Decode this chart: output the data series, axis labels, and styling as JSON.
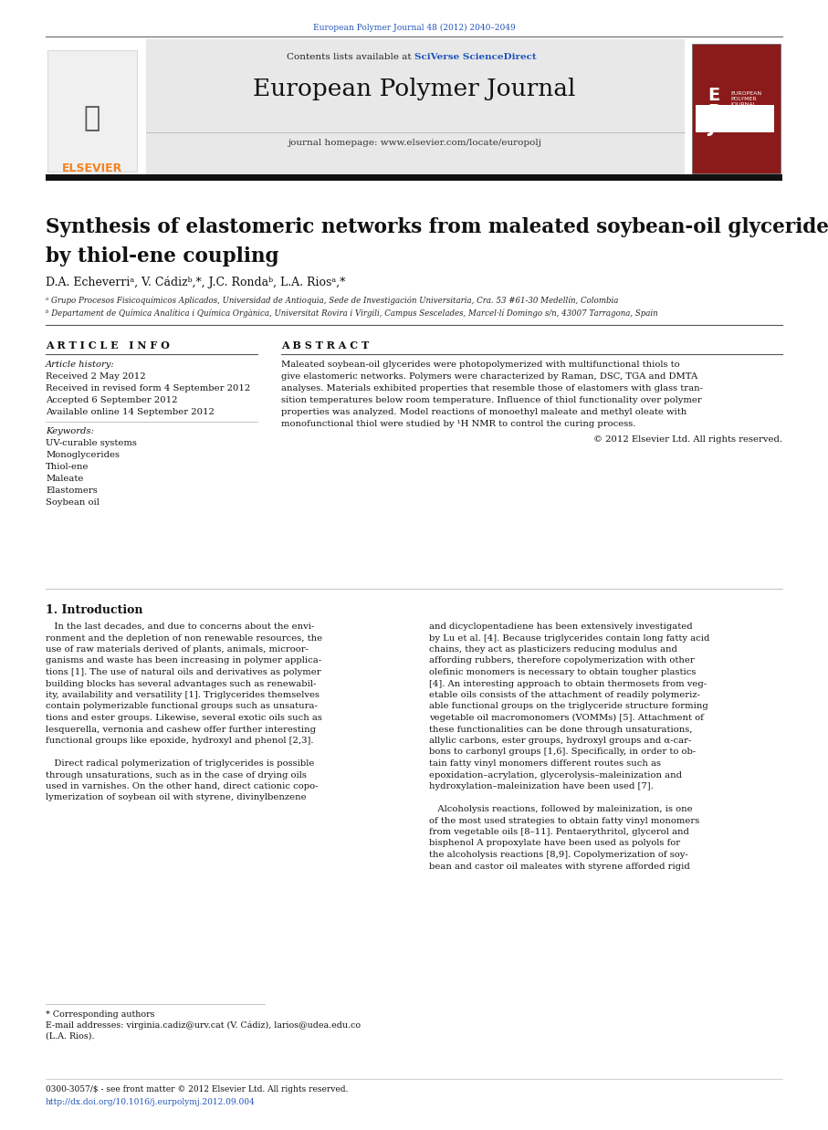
{
  "page_width": 9.07,
  "page_height": 12.38,
  "bg_color": "#ffffff",
  "header_journal_ref": "European Polymer Journal 48 (2012) 2040–2049",
  "journal_title": "European Polymer Journal",
  "journal_homepage": "journal homepage: www.elsevier.com/locate/europolj",
  "contents_text": "Contents lists available at ",
  "sciverse_text": "SciVerse ScienceDirect",
  "paper_title_line1": "Synthesis of elastomeric networks from maleated soybean-oil glycerides",
  "paper_title_line2": "by thiol-ene coupling",
  "authors": "D.A. Echeverriᵃ, V. Cádizᵇ,*, J.C. Rondaᵇ, L.A. Riosᵃ,*",
  "affil_a": "ᵃ Grupo Procesos Fisicoquímicos Aplicados, Universidad de Antioquia, Sede de Investigación Universitaria, Cra. 53 #61-30 Medellín, Colombia",
  "affil_b": "ᵇ Departament de Química Analítica i Química Orgànica, Universitat Rovira i Virgili, Campus Sescelades, Marcel·lí Domingo s/n, 43007 Tarragona, Spain",
  "article_info_header": "A R T I C L E   I N F O",
  "abstract_header": "A B S T R A C T",
  "article_history_label": "Article history:",
  "received": "Received 2 May 2012",
  "received_revised": "Received in revised form 4 September 2012",
  "accepted": "Accepted 6 September 2012",
  "available": "Available online 14 September 2012",
  "keywords_label": "Keywords:",
  "keywords": [
    "UV-curable systems",
    "Monoglycerides",
    "Thiol-ene",
    "Maleate",
    "Elastomers",
    "Soybean oil"
  ],
  "copyright": "© 2012 Elsevier Ltd. All rights reserved.",
  "intro_header": "1. Introduction",
  "footnote_star": "* Corresponding authors",
  "footnote_email": "E-mail addresses: virginia.cadiz@urv.cat (V. Cádiz), larios@udea.edu.co",
  "footnote_email2": "(L.A. Rios).",
  "copyright_footer": "0300-3057/$ - see front matter © 2012 Elsevier Ltd. All rights reserved.",
  "doi_footer": "http://dx.doi.org/10.1016/j.eurpolymj.2012.09.004",
  "header_bg": "#e8e8e8",
  "dark_bar_color": "#111111",
  "elsevier_orange": "#f5821f",
  "elsevier_red": "#8b1a1a",
  "link_blue": "#2255bb",
  "text_dark": "#111111",
  "abstract_lines": [
    "Maleated soybean-oil glycerides were photopolymerized with multifunctional thiols to",
    "give elastomeric networks. Polymers were characterized by Raman, DSC, TGA and DMTA",
    "analyses. Materials exhibited properties that resemble those of elastomers with glass tran-",
    "sition temperatures below room temperature. Influence of thiol functionality over polymer",
    "properties was analyzed. Model reactions of monoethyl maleate and methyl oleate with",
    "monofunctional thiol were studied by ¹H NMR to control the curing process."
  ],
  "intro_col1_lines": [
    "   In the last decades, and due to concerns about the envi-",
    "ronment and the depletion of non renewable resources, the",
    "use of raw materials derived of plants, animals, microor-",
    "ganisms and waste has been increasing in polymer applica-",
    "tions [1]. The use of natural oils and derivatives as polymer",
    "building blocks has several advantages such as renewabil-",
    "ity, availability and versatility [1]. Triglycerides themselves",
    "contain polymerizable functional groups such as unsatura-",
    "tions and ester groups. Likewise, several exotic oils such as",
    "lesquerella, vernonia and cashew offer further interesting",
    "functional groups like epoxide, hydroxyl and phenol [2,3].",
    "",
    "   Direct radical polymerization of triglycerides is possible",
    "through unsaturations, such as in the case of drying oils",
    "used in varnishes. On the other hand, direct cationic copo-",
    "lymerization of soybean oil with styrene, divinylbenzene"
  ],
  "intro_col2_lines": [
    "and dicyclopentadiene has been extensively investigated",
    "by Lu et al. [4]. Because triglycerides contain long fatty acid",
    "chains, they act as plasticizers reducing modulus and",
    "affording rubbers, therefore copolymerization with other",
    "olefinic monomers is necessary to obtain tougher plastics",
    "[4]. An interesting approach to obtain thermosets from veg-",
    "etable oils consists of the attachment of readily polymeriz-",
    "able functional groups on the triglyceride structure forming",
    "vegetable oil macromonomers (VOMMs) [5]. Attachment of",
    "these functionalities can be done through unsaturations,",
    "allylic carbons, ester groups, hydroxyl groups and α-car-",
    "bons to carbonyl groups [1,6]. Specifically, in order to ob-",
    "tain fatty vinyl monomers different routes such as",
    "epoxidation–acrylation, glycerolysis–maleinization and",
    "hydroxylation–maleinization have been used [7].",
    "",
    "   Alcoholysis reactions, followed by maleinization, is one",
    "of the most used strategies to obtain fatty vinyl monomers",
    "from vegetable oils [8–11]. Pentaerythritol, glycerol and",
    "bisphenol A propoxylate have been used as polyols for",
    "the alcoholysis reactions [8,9]. Copolymerization of soy-",
    "bean and castor oil maleates with styrene afforded rigid"
  ]
}
